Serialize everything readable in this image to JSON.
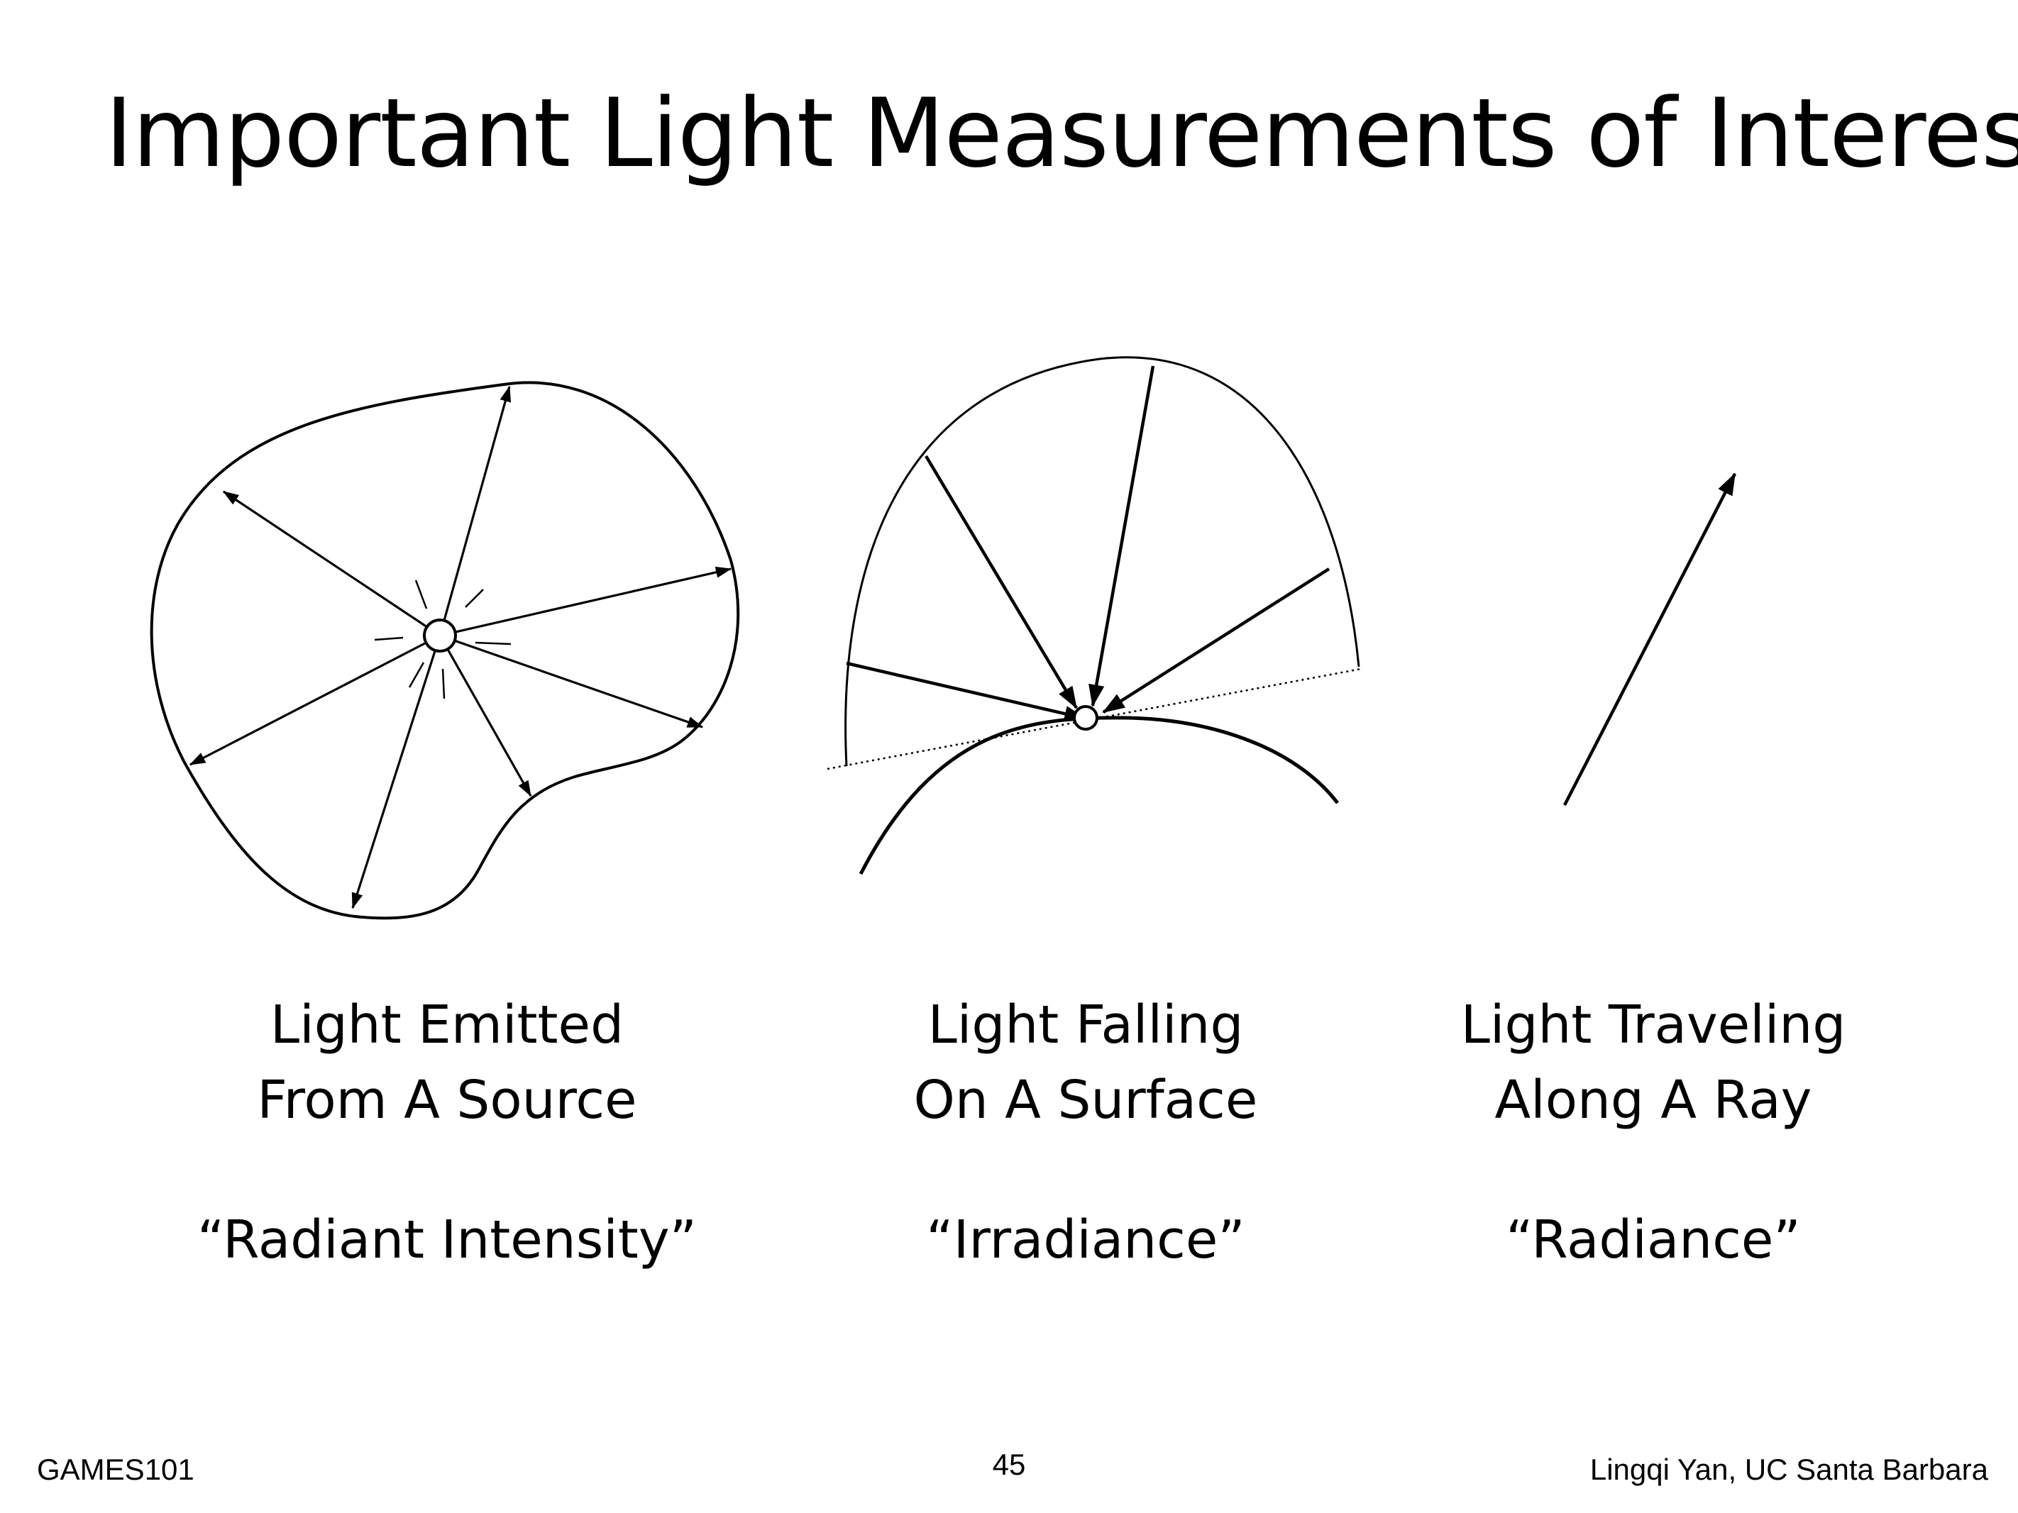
{
  "slide": {
    "title": "Important Light Measurements of Interest",
    "captions": [
      {
        "line1": "Light Emitted",
        "line2": "From A Source",
        "term": "“Radiant Intensity”"
      },
      {
        "line1": "Light Falling",
        "line2": "On A Surface",
        "term": "“Irradiance”"
      },
      {
        "line1": "Light Traveling",
        "line2": "Along A Ray",
        "term": "“Radiance”"
      }
    ]
  },
  "footer": {
    "left": "GAMES101",
    "page_number": "45",
    "right": "Lingqi Yan, UC Santa Barbara"
  }
}
